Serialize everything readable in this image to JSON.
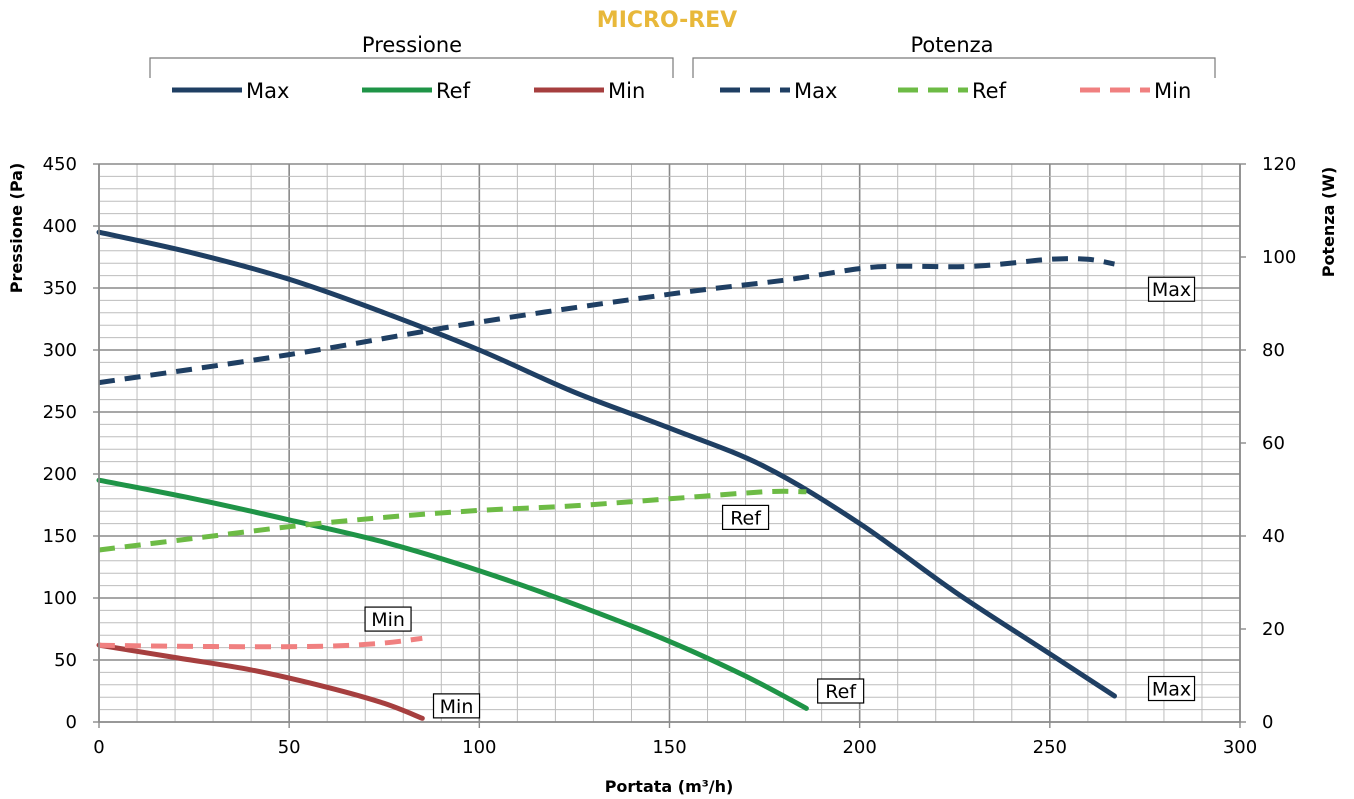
{
  "chart_data": {
    "type": "line",
    "title": "MICRO-REV",
    "title_color": "#E8B83A",
    "xlabel": "Portata (m³/h)",
    "ylabel": "Pressione (Pa)",
    "y2label": "Potenza (W)",
    "xlim": [
      0,
      300
    ],
    "ylim": [
      0,
      450
    ],
    "y2lim": [
      0,
      120
    ],
    "x_ticks": [
      0,
      50,
      100,
      150,
      200,
      250,
      300
    ],
    "y_ticks": [
      0,
      50,
      100,
      150,
      200,
      250,
      300,
      350,
      400,
      450
    ],
    "y2_ticks": [
      0,
      20,
      40,
      60,
      80,
      100,
      120
    ],
    "grid": true,
    "legend_placement": "top",
    "legend_groups": [
      {
        "title": "Pressione",
        "entries": [
          "Max",
          "Ref",
          "Min"
        ]
      },
      {
        "title": "Potenza",
        "entries": [
          "Max",
          "Ref",
          "Min"
        ]
      }
    ],
    "series": [
      {
        "name": "Max",
        "group": "Pressione",
        "axis": "left",
        "style": "solid",
        "color": "#1F3F63",
        "x": [
          0,
          25,
          50,
          75,
          100,
          125,
          150,
          175,
          200,
          225,
          250,
          267
        ],
        "y": [
          395,
          378,
          357,
          330,
          300,
          266,
          237,
          206,
          160,
          105,
          55,
          21
        ]
      },
      {
        "name": "Ref",
        "group": "Pressione",
        "axis": "left",
        "style": "solid",
        "color": "#1F9447",
        "x": [
          0,
          25,
          50,
          75,
          100,
          125,
          150,
          170,
          186
        ],
        "y": [
          195,
          180,
          163,
          145,
          122,
          95,
          65,
          37,
          11
        ]
      },
      {
        "name": "Min",
        "group": "Pressione",
        "axis": "left",
        "style": "solid",
        "color": "#A63F3F",
        "x": [
          0,
          20,
          40,
          60,
          75,
          85
        ],
        "y": [
          62,
          52,
          42,
          28,
          15,
          3
        ]
      },
      {
        "name": "Max",
        "group": "Potenza",
        "axis": "right",
        "style": "dashed",
        "color": "#1F3F63",
        "x": [
          0,
          50,
          100,
          150,
          180,
          200,
          210,
          230,
          250,
          260,
          267
        ],
        "y": [
          73,
          79,
          86,
          92,
          95,
          97.5,
          98,
          98,
          99.5,
          99.5,
          98.5
        ]
      },
      {
        "name": "Ref",
        "group": "Potenza",
        "axis": "right",
        "style": "dashed",
        "color": "#6DBB45",
        "x": [
          0,
          25,
          50,
          75,
          100,
          125,
          150,
          175,
          186
        ],
        "y": [
          37,
          39.5,
          42,
          44,
          45.5,
          46.5,
          48,
          49.5,
          49.5
        ]
      },
      {
        "name": "Min",
        "group": "Potenza",
        "axis": "right",
        "style": "dashed",
        "color": "#F08080",
        "x": [
          0,
          20,
          40,
          60,
          75,
          85
        ],
        "y": [
          16.5,
          16.3,
          16.2,
          16.3,
          17,
          18
        ]
      }
    ],
    "annotations": [
      {
        "text": "Max",
        "x": 282,
        "y": 349
      },
      {
        "text": "Max",
        "x": 282,
        "y": 27
      },
      {
        "text": "Ref",
        "x": 170,
        "y": 165
      },
      {
        "text": "Ref",
        "x": 195,
        "y": 25
      },
      {
        "text": "Min",
        "x": 76,
        "y": 83
      },
      {
        "text": "Min",
        "x": 94,
        "y": 13
      }
    ]
  }
}
